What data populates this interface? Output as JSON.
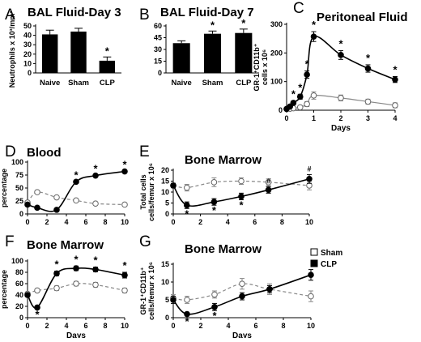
{
  "chart_data": [
    {
      "panel": "A",
      "type": "bar",
      "title": "BAL Fluid-Day 3",
      "ylabel": "Neutrophils x 10³/mm³",
      "categories": [
        "Naive",
        "Sham",
        "CLP"
      ],
      "values": [
        41,
        44,
        13
      ],
      "errors": [
        4.5,
        3.5,
        4
      ],
      "ylim": [
        0,
        50
      ],
      "yticks": [
        "0",
        "10",
        "20",
        "30",
        "40",
        "50"
      ],
      "annotations": [
        "",
        "",
        "*"
      ]
    },
    {
      "panel": "B",
      "type": "bar",
      "title": "BAL Fluid-Day 7",
      "ylabel": "",
      "categories": [
        "Naive",
        "Sham",
        "CLP"
      ],
      "values": [
        38,
        50,
        51
      ],
      "errors": [
        3,
        3.5,
        5
      ],
      "ylim": [
        0,
        60
      ],
      "yticks": [
        "0",
        "15",
        "30",
        "45",
        "60"
      ],
      "annotations": [
        "",
        "*",
        "*"
      ]
    },
    {
      "panel": "C",
      "type": "line",
      "title": "Peritoneal Fluid",
      "ylabel": "GR-1⁺CD11b⁺ cells x 10⁶",
      "xlabel": "Days",
      "xlim": [
        0,
        4
      ],
      "ylim": [
        0,
        350
      ],
      "xticks": [
        "0",
        "1",
        "2",
        "3",
        "4"
      ],
      "yticks": [
        "0",
        "100",
        "200",
        "300"
      ],
      "series": [
        {
          "name": "CLP",
          "marker": "filled",
          "style": "solid",
          "x": [
            0,
            0.125,
            0.25,
            0.5,
            0.75,
            1,
            2,
            3,
            4
          ],
          "y": [
            5,
            15,
            30,
            55,
            145,
            300,
            225,
            170,
            125
          ],
          "err": [
            3,
            5,
            8,
            10,
            15,
            20,
            18,
            15,
            12
          ],
          "stars": [
            false,
            false,
            true,
            true,
            true,
            true,
            true,
            true,
            true
          ]
        },
        {
          "name": "Sham",
          "marker": "open",
          "style": "solid",
          "x": [
            0,
            0.125,
            0.25,
            0.5,
            0.75,
            1,
            2,
            3,
            4
          ],
          "y": [
            5,
            6,
            8,
            12,
            25,
            60,
            50,
            35,
            20
          ],
          "err": [
            2,
            2,
            3,
            5,
            10,
            15,
            12,
            10,
            10
          ]
        }
      ]
    },
    {
      "panel": "D",
      "type": "line",
      "title": "Blood",
      "ylabel": "percentage",
      "xlabel": "",
      "xlim": [
        0,
        10
      ],
      "ylim": [
        0,
        100
      ],
      "xticks": [
        "0",
        "2",
        "4",
        "6",
        "8",
        "10"
      ],
      "yticks": [
        "0",
        "25",
        "50",
        "75",
        "100"
      ],
      "series": [
        {
          "name": "CLP",
          "marker": "filled",
          "style": "solid",
          "x": [
            0,
            1,
            3,
            5,
            7,
            10
          ],
          "y": [
            18,
            12,
            8,
            62,
            74,
            82
          ],
          "err": [
            0,
            0,
            0,
            0,
            0,
            0
          ],
          "stars": [
            false,
            false,
            false,
            true,
            true,
            true
          ]
        },
        {
          "name": "Sham",
          "marker": "open",
          "style": "dashed",
          "x": [
            0,
            1,
            3,
            5,
            7,
            10
          ],
          "y": [
            22,
            42,
            32,
            26,
            20,
            18
          ],
          "err": [
            0,
            0,
            0,
            0,
            0,
            0
          ]
        }
      ]
    },
    {
      "panel": "E",
      "type": "line",
      "title": "Bone Marrow",
      "ylabel": "Total cells cells/femur x 10⁶",
      "xlabel": "",
      "xlim": [
        0,
        10
      ],
      "ylim": [
        0,
        20
      ],
      "xticks": [
        "0",
        "2",
        "4",
        "6",
        "8",
        "10"
      ],
      "yticks": [
        "0",
        "5",
        "10",
        "15",
        "20"
      ],
      "series": [
        {
          "name": "CLP",
          "marker": "filled",
          "style": "solid",
          "x": [
            0,
            1,
            3,
            5,
            7,
            10
          ],
          "y": [
            13,
            4,
            5.5,
            8,
            11,
            16
          ],
          "err": [
            1,
            1.5,
            1.5,
            1.5,
            1.5,
            2
          ],
          "marks": [
            "",
            "*",
            "*",
            "*",
            "#",
            "#"
          ]
        },
        {
          "name": "Sham",
          "marker": "open",
          "style": "dashed",
          "x": [
            0,
            1,
            3,
            5,
            7,
            10
          ],
          "y": [
            13,
            12,
            14.5,
            15,
            14.5,
            13
          ],
          "err": [
            1,
            1.5,
            2,
            1.5,
            1.5,
            2
          ]
        }
      ]
    },
    {
      "panel": "F",
      "type": "line",
      "title": "Bone Marrow",
      "ylabel": "percentage",
      "xlabel": "Days",
      "xlim": [
        0,
        10
      ],
      "ylim": [
        0,
        100
      ],
      "xticks": [
        "0",
        "2",
        "4",
        "6",
        "8",
        "10"
      ],
      "yticks": [
        "0",
        "20",
        "40",
        "60",
        "80",
        "100"
      ],
      "series": [
        {
          "name": "CLP",
          "marker": "filled",
          "style": "solid",
          "x": [
            0,
            1,
            3,
            5,
            7,
            10
          ],
          "y": [
            40,
            18,
            78,
            87,
            85,
            75
          ],
          "err": [
            3,
            3,
            4,
            4,
            4,
            5
          ],
          "stars": [
            false,
            true,
            true,
            true,
            true,
            true
          ]
        },
        {
          "name": "Sham",
          "marker": "open",
          "style": "dashed",
          "x": [
            0,
            1,
            3,
            5,
            7,
            10
          ],
          "y": [
            42,
            48,
            52,
            60,
            58,
            48
          ],
          "err": [
            3,
            3,
            4,
            4,
            4,
            4
          ]
        }
      ]
    },
    {
      "panel": "G",
      "type": "line",
      "title": "Bone Marrow",
      "ylabel": "GR-1⁺CD11b⁺ cells/femur x 10⁶",
      "xlabel": "Days",
      "xlim": [
        0,
        10
      ],
      "ylim": [
        0,
        15
      ],
      "xticks": [
        "0",
        "2",
        "4",
        "6",
        "8",
        "10"
      ],
      "yticks": [
        "0",
        "5",
        "10",
        "15"
      ],
      "series": [
        {
          "name": "CLP",
          "marker": "filled",
          "style": "solid",
          "x": [
            0,
            1,
            3,
            5,
            7,
            10
          ],
          "y": [
            5,
            1,
            3,
            6,
            8,
            12
          ],
          "err": [
            1,
            0.5,
            1,
            1,
            1,
            1.5
          ],
          "stars": [
            false,
            true,
            true,
            false,
            false,
            false
          ]
        },
        {
          "name": "Sham",
          "marker": "open",
          "style": "dashed",
          "x": [
            0,
            1,
            3,
            5,
            7,
            10
          ],
          "y": [
            5.5,
            5,
            6.5,
            9.5,
            8,
            6
          ],
          "err": [
            1,
            1,
            1,
            1.5,
            1.5,
            1.5
          ]
        }
      ]
    }
  ],
  "legend": {
    "sham_label": "Sham",
    "clp_label": "CLP"
  }
}
